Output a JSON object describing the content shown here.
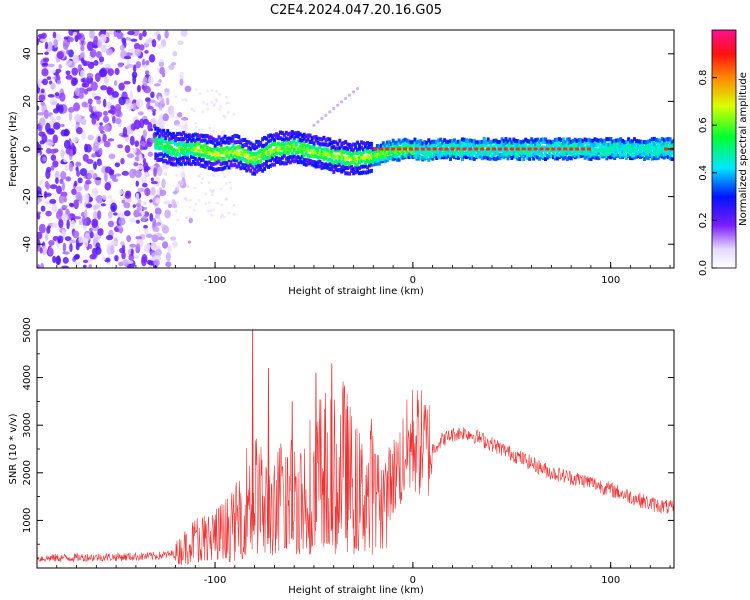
{
  "title": "C2E4.2024.047.20.16.G05",
  "chart_data": [
    {
      "type": "heatmap",
      "xlabel": "Height of straight line (km)",
      "ylabel": "Frequency (Hz)",
      "xlim": [
        -190,
        132
      ],
      "ylim": [
        -50,
        50
      ],
      "x_ticks": [
        -100,
        0,
        100
      ],
      "y_ticks": [
        -40,
        -20,
        0,
        20,
        40
      ],
      "grid": false,
      "colorbar": {
        "label": "Normalized spectral amplitude",
        "range": [
          0,
          1
        ],
        "ticks": [
          0.0,
          0.2,
          0.4,
          0.6,
          0.8
        ]
      },
      "carrier_trace": {
        "x": [
          -128,
          -120,
          -110,
          -100,
          -90,
          -80,
          -70,
          -60,
          -50,
          -40,
          -30,
          -20,
          -12,
          -5,
          0,
          5,
          10,
          30,
          60,
          90,
          110,
          132
        ],
        "y": [
          2,
          0,
          0,
          -2,
          -1,
          -4,
          0,
          1,
          -1,
          -3,
          -4,
          -3,
          -1,
          0,
          0,
          -1,
          0,
          0,
          0,
          0,
          0,
          0
        ]
      }
    },
    {
      "type": "line",
      "xlabel": "Height of straight line (km)",
      "ylabel": "SNR (10 * v/v)",
      "xlim": [
        -190,
        132
      ],
      "ylim": [
        0,
        5000
      ],
      "x_ticks": [
        -100,
        0,
        100
      ],
      "y_ticks": [
        1000,
        2000,
        3000,
        4000,
        5000
      ],
      "grid": false,
      "series": [
        {
          "color": "#ee3333",
          "x": [
            -190,
            -170,
            -150,
            -130,
            -120,
            -115,
            -110,
            -100,
            -90,
            -85,
            -80,
            -75,
            -70,
            -65,
            -60,
            -55,
            -50,
            -45,
            -40,
            -35,
            -30,
            -25,
            -20,
            -15,
            -10,
            -5,
            0,
            5,
            10,
            15,
            20,
            25,
            30,
            40,
            50,
            60,
            70,
            80,
            90,
            100,
            110,
            120,
            132
          ],
          "values": [
            200,
            220,
            230,
            250,
            300,
            450,
            600,
            700,
            900,
            1400,
            1600,
            1300,
            1200,
            1700,
            1500,
            1600,
            1900,
            2100,
            1900,
            2200,
            1700,
            1500,
            1800,
            1600,
            1900,
            2300,
            2700,
            2600,
            2500,
            2700,
            2800,
            2850,
            2800,
            2600,
            2400,
            2200,
            2000,
            1900,
            1800,
            1650,
            1500,
            1350,
            1250
          ]
        }
      ],
      "spikes": [
        {
          "x": -81,
          "value": 5000
        },
        {
          "x": -73,
          "value": 4200
        },
        {
          "x": -61,
          "value": 3500
        },
        {
          "x": -49,
          "value": 4100
        },
        {
          "x": -41,
          "value": 4300
        },
        {
          "x": -33,
          "value": 3400
        }
      ]
    }
  ]
}
